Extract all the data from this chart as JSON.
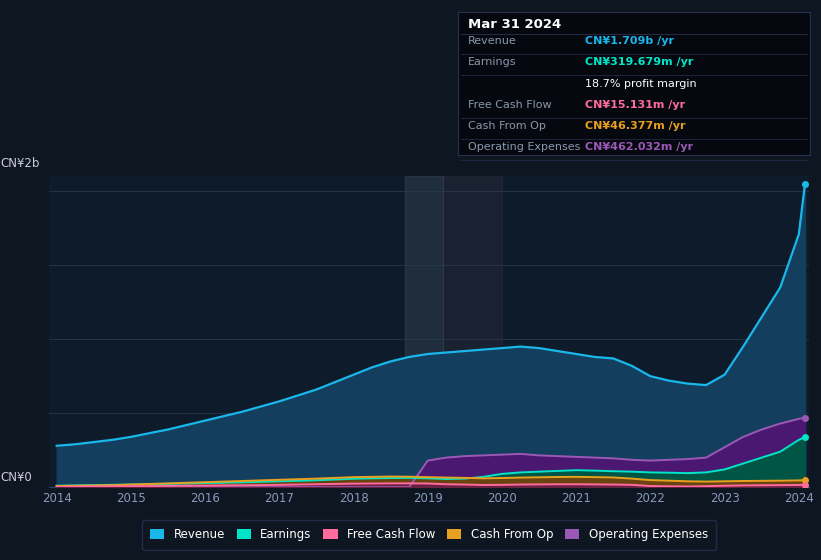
{
  "bg_color": "#0e1621",
  "plot_bg_color": "#0d1b2a",
  "ylabel": "CN¥2b",
  "y0_label": "CN¥0",
  "years": [
    2014.0,
    2014.25,
    2014.5,
    2014.75,
    2015.0,
    2015.25,
    2015.5,
    2015.75,
    2016.0,
    2016.25,
    2016.5,
    2016.75,
    2017.0,
    2017.25,
    2017.5,
    2017.75,
    2018.0,
    2018.25,
    2018.5,
    2018.75,
    2019.0,
    2019.25,
    2019.5,
    2019.75,
    2020.0,
    2020.25,
    2020.5,
    2020.75,
    2021.0,
    2021.25,
    2021.5,
    2021.75,
    2022.0,
    2022.25,
    2022.5,
    2022.75,
    2023.0,
    2023.25,
    2023.5,
    2023.75,
    2024.0,
    2024.083
  ],
  "revenue": [
    0.28,
    0.29,
    0.305,
    0.32,
    0.34,
    0.365,
    0.39,
    0.42,
    0.45,
    0.48,
    0.51,
    0.545,
    0.58,
    0.62,
    0.66,
    0.71,
    0.76,
    0.81,
    0.85,
    0.88,
    0.9,
    0.91,
    0.92,
    0.93,
    0.94,
    0.95,
    0.94,
    0.92,
    0.9,
    0.88,
    0.87,
    0.82,
    0.75,
    0.72,
    0.7,
    0.69,
    0.76,
    0.95,
    1.15,
    1.35,
    1.709,
    2.05
  ],
  "earnings": [
    0.01,
    0.012,
    0.014,
    0.016,
    0.018,
    0.02,
    0.022,
    0.025,
    0.028,
    0.03,
    0.033,
    0.036,
    0.04,
    0.043,
    0.047,
    0.052,
    0.057,
    0.06,
    0.062,
    0.063,
    0.06,
    0.055,
    0.058,
    0.07,
    0.09,
    0.1,
    0.105,
    0.11,
    0.115,
    0.112,
    0.108,
    0.105,
    0.1,
    0.098,
    0.095,
    0.1,
    0.12,
    0.16,
    0.2,
    0.24,
    0.32,
    0.34
  ],
  "free_cash_flow": [
    0.003,
    0.004,
    0.005,
    0.006,
    0.007,
    0.008,
    0.009,
    0.01,
    0.011,
    0.012,
    0.013,
    0.014,
    0.016,
    0.018,
    0.02,
    0.022,
    0.024,
    0.025,
    0.026,
    0.026,
    0.025,
    0.02,
    0.018,
    0.015,
    0.016,
    0.018,
    0.019,
    0.02,
    0.02,
    0.019,
    0.018,
    0.016,
    0.008,
    0.006,
    0.005,
    0.007,
    0.01,
    0.012,
    0.013,
    0.014,
    0.015,
    0.016
  ],
  "cash_from_op": [
    0.008,
    0.01,
    0.012,
    0.014,
    0.018,
    0.022,
    0.026,
    0.03,
    0.034,
    0.038,
    0.042,
    0.046,
    0.05,
    0.054,
    0.058,
    0.063,
    0.068,
    0.07,
    0.072,
    0.071,
    0.068,
    0.065,
    0.063,
    0.06,
    0.062,
    0.065,
    0.067,
    0.069,
    0.07,
    0.068,
    0.066,
    0.058,
    0.048,
    0.044,
    0.04,
    0.038,
    0.04,
    0.042,
    0.043,
    0.044,
    0.046,
    0.048
  ],
  "op_expenses": [
    0.0,
    0.0,
    0.0,
    0.0,
    0.0,
    0.0,
    0.0,
    0.0,
    0.0,
    0.0,
    0.0,
    0.0,
    0.0,
    0.0,
    0.0,
    0.0,
    0.0,
    0.0,
    0.0,
    0.0,
    0.18,
    0.2,
    0.21,
    0.215,
    0.22,
    0.225,
    0.215,
    0.21,
    0.205,
    0.2,
    0.195,
    0.185,
    0.18,
    0.185,
    0.19,
    0.2,
    0.27,
    0.34,
    0.39,
    0.43,
    0.462,
    0.47
  ],
  "revenue_color": "#1ab7ea",
  "earnings_color": "#00e5c8",
  "fcf_color": "#ff6b9d",
  "cashop_color": "#e8a020",
  "opex_color": "#9b59b6",
  "revenue_fill": "#143e5e",
  "earnings_fill": "#005544",
  "fcf_fill": "#6a2040",
  "cashop_fill": "#6a4410",
  "opex_fill": "#4a1870",
  "xtick_years": [
    2014,
    2015,
    2016,
    2017,
    2018,
    2019,
    2020,
    2021,
    2022,
    2023,
    2024
  ],
  "ylim_max": 2.1,
  "grid_levels": [
    0.0,
    0.5,
    1.0,
    1.5,
    2.0
  ],
  "info_box": {
    "date": "Mar 31 2024",
    "revenue_val": "CN¥1.709b",
    "earnings_val": "CN¥319.679m",
    "profit_margin": "18.7%",
    "fcf_val": "CN¥15.131m",
    "cashop_val": "CN¥46.377m",
    "opex_val": "CN¥462.032m"
  },
  "legend_items": [
    "Revenue",
    "Earnings",
    "Free Cash Flow",
    "Cash From Op",
    "Operating Expenses"
  ],
  "legend_colors": [
    "#1ab7ea",
    "#00e5c8",
    "#ff6b9d",
    "#e8a020",
    "#9b59b6"
  ]
}
